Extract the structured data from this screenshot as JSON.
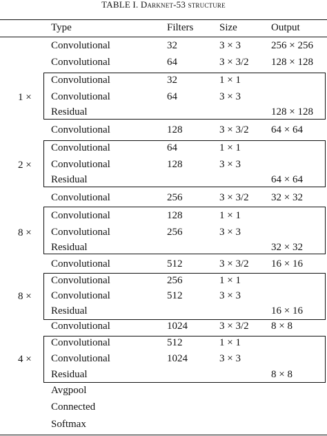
{
  "caption": {
    "prefix": "TABLE I. D",
    "rest": "arknet-53 structure"
  },
  "header": {
    "type": "Type",
    "filters": "Filters",
    "size": "Size",
    "output": "Output"
  },
  "rows": [
    {
      "type": "Convolutional",
      "filters": "32",
      "size": "3 × 3",
      "output": "256 × 256"
    },
    {
      "type": "Convolutional",
      "filters": "64",
      "size": "3 × 3/2",
      "output": "128 × 128"
    },
    {
      "type": "Convolutional",
      "filters": "32",
      "size": "1 × 1",
      "output": ""
    },
    {
      "type": "Convolutional",
      "filters": "64",
      "size": "3 × 3",
      "output": ""
    },
    {
      "type": "Residual",
      "filters": "",
      "size": "",
      "output": "128 × 128"
    },
    {
      "type": "Convolutional",
      "filters": "128",
      "size": "3 × 3/2",
      "output": "64 × 64"
    },
    {
      "type": "Convolutional",
      "filters": "64",
      "size": "1 × 1",
      "output": ""
    },
    {
      "type": "Convolutional",
      "filters": "128",
      "size": "3 × 3",
      "output": ""
    },
    {
      "type": "Residual",
      "filters": "",
      "size": "",
      "output": "64 × 64"
    },
    {
      "type": "Convolutional",
      "filters": "256",
      "size": "3 × 3/2",
      "output": "32 × 32"
    },
    {
      "type": "Convolutional",
      "filters": "128",
      "size": "1 × 1",
      "output": ""
    },
    {
      "type": "Convolutional",
      "filters": "256",
      "size": "3 × 3",
      "output": ""
    },
    {
      "type": "Residual",
      "filters": "",
      "size": "",
      "output": "32 × 32"
    },
    {
      "type": "Convolutional",
      "filters": "512",
      "size": "3 × 3/2",
      "output": "16 × 16"
    },
    {
      "type": "Convolutional",
      "filters": "256",
      "size": "1 × 1",
      "output": ""
    },
    {
      "type": "Convolutional",
      "filters": "512",
      "size": "3 × 3",
      "output": ""
    },
    {
      "type": "Residual",
      "filters": "",
      "size": "",
      "output": "16 × 16"
    },
    {
      "type": "Convolutional",
      "filters": "1024",
      "size": "3 × 3/2",
      "output": "8 × 8"
    },
    {
      "type": "Convolutional",
      "filters": "512",
      "size": "1 × 1",
      "output": ""
    },
    {
      "type": "Convolutional",
      "filters": "1024",
      "size": "3 × 3",
      "output": ""
    },
    {
      "type": "Residual",
      "filters": "",
      "size": "",
      "output": "8 × 8"
    },
    {
      "type": "Avgpool",
      "filters": "",
      "size": "",
      "output": ""
    },
    {
      "type": "Connected",
      "filters": "",
      "size": "",
      "output": ""
    },
    {
      "type": "Softmax",
      "filters": "",
      "size": "",
      "output": ""
    }
  ],
  "repeats": [
    "1 ×",
    "2 ×",
    "8 ×",
    "8 ×",
    "4 ×"
  ]
}
